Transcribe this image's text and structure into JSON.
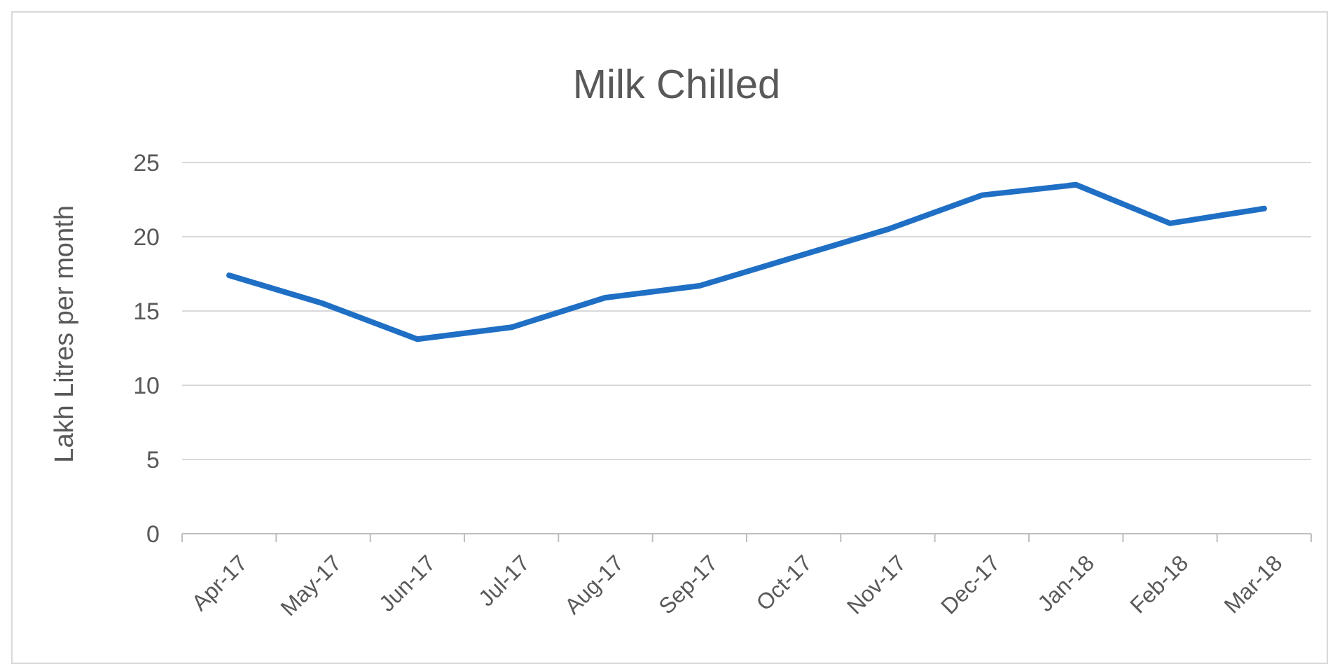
{
  "chart_data": {
    "type": "line",
    "title": "Milk Chilled",
    "ylabel": "Lakh Litres per month",
    "categories": [
      "Apr-17",
      "May-17",
      "Jun-17",
      "Jul-17",
      "Aug-17",
      "Sep-17",
      "Oct-17",
      "Nov-17",
      "Dec-17",
      "Jan-18",
      "Feb-18",
      "Mar-18"
    ],
    "series": [
      {
        "color": "#1f6fc5",
        "values": [
          17.4,
          15.5,
          13.1,
          13.9,
          15.9,
          16.7,
          18.6,
          20.5,
          22.8,
          23.5,
          20.9,
          21.9
        ]
      }
    ],
    "ylim": [
      0,
      25
    ],
    "yticks": [
      0,
      5,
      10,
      15,
      20,
      25
    ],
    "grid": "y",
    "marker": "none",
    "line_style": "solid"
  }
}
